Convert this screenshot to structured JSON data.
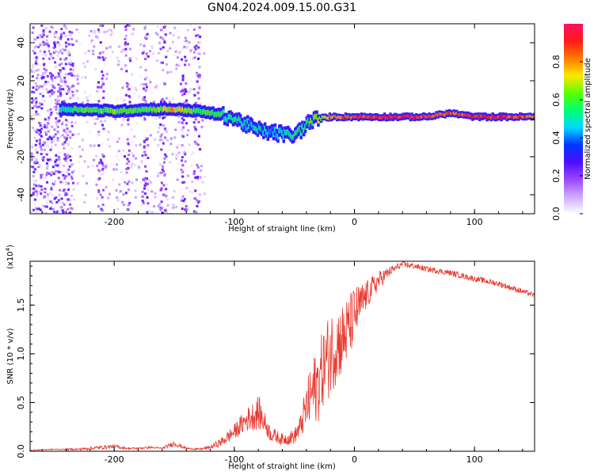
{
  "chart_data": [
    {
      "type": "heatmap",
      "title": "GN04.2024.009.15.00.G31",
      "xlabel": "Height of straight line (km)",
      "ylabel": "Frequency (Hz)",
      "xlim": [
        -270,
        150
      ],
      "ylim": [
        -50,
        50
      ],
      "xticks": [
        -200,
        -100,
        0,
        100
      ],
      "yticks": [
        -40,
        -20,
        0,
        20,
        40
      ],
      "colorbar": {
        "label": "Normalized spectral amplitude",
        "ticks": [
          "0.0",
          "0.2",
          "0.4",
          "0.6",
          "0.8"
        ],
        "range": [
          0,
          1
        ],
        "colors": [
          "#ffffff",
          "#cfa8ff",
          "#9a46ff",
          "#4b0dff",
          "#0038ff",
          "#00d8ff",
          "#00ff70",
          "#5cff00",
          "#ffe600",
          "#ff7a00",
          "#ff1a1a",
          "#ff1060"
        ]
      },
      "ridge": {
        "x": [
          -245,
          -230,
          -200,
          -170,
          -150,
          -130,
          -110,
          -100,
          -90,
          -80,
          -70,
          -60,
          -50,
          -45,
          -40,
          -35,
          -30,
          -20,
          -10,
          0,
          20,
          40,
          60,
          80,
          100,
          120,
          150
        ],
        "y": [
          5,
          5,
          4,
          5,
          5,
          4,
          2,
          0,
          -3,
          -6,
          -7,
          -8,
          -9,
          -6,
          -3,
          -1,
          0,
          1,
          1,
          1,
          1,
          1,
          1,
          3,
          1,
          1,
          1
        ],
        "amplitude": [
          0.5,
          0.6,
          0.65,
          0.6,
          0.8,
          0.6,
          0.55,
          0.5,
          0.5,
          0.45,
          0.45,
          0.5,
          0.55,
          0.55,
          0.6,
          0.65,
          0.7,
          0.8,
          0.9,
          0.9,
          0.95,
          1.0,
          0.95,
          0.9,
          0.95,
          0.95,
          0.9
        ]
      }
    },
    {
      "type": "line",
      "xlabel": "Height of straight line (km)",
      "ylabel": "SNR (10 * v/v)",
      "y_multiplier": "(x10",
      "y_exponent": "4",
      "xlim": [
        -270,
        150
      ],
      "ylim": [
        0,
        1.95
      ],
      "xticks": [
        -200,
        -100,
        0,
        100
      ],
      "yticks": [
        "0.0",
        "0.5",
        "1.0",
        "1.5"
      ],
      "color": "#e8392f",
      "x": [
        -270,
        -250,
        -230,
        -210,
        -200,
        -190,
        -180,
        -170,
        -160,
        -150,
        -140,
        -130,
        -120,
        -110,
        -100,
        -90,
        -80,
        -75,
        -70,
        -60,
        -50,
        -45,
        -40,
        -35,
        -30,
        -25,
        -20,
        -15,
        -10,
        -5,
        0,
        10,
        20,
        30,
        40,
        50,
        60,
        80,
        100,
        120,
        140,
        150
      ],
      "y": [
        0.01,
        0.02,
        0.02,
        0.04,
        0.05,
        0.03,
        0.03,
        0.04,
        0.03,
        0.08,
        0.03,
        0.02,
        0.04,
        0.1,
        0.2,
        0.32,
        0.4,
        0.3,
        0.18,
        0.12,
        0.15,
        0.25,
        0.45,
        0.6,
        0.7,
        0.9,
        1.0,
        1.1,
        1.15,
        1.25,
        1.4,
        1.6,
        1.75,
        1.85,
        1.92,
        1.9,
        1.87,
        1.83,
        1.77,
        1.72,
        1.64,
        1.6
      ],
      "noise": [
        0.005,
        0.005,
        0.01,
        0.02,
        0.02,
        0.01,
        0.01,
        0.01,
        0.01,
        0.03,
        0.01,
        0.01,
        0.02,
        0.05,
        0.08,
        0.12,
        0.18,
        0.12,
        0.08,
        0.06,
        0.08,
        0.12,
        0.25,
        0.35,
        0.4,
        0.4,
        0.45,
        0.4,
        0.38,
        0.35,
        0.3,
        0.15,
        0.1,
        0.05,
        0.03,
        0.03,
        0.03,
        0.03,
        0.03,
        0.03,
        0.03,
        0.02
      ]
    }
  ]
}
